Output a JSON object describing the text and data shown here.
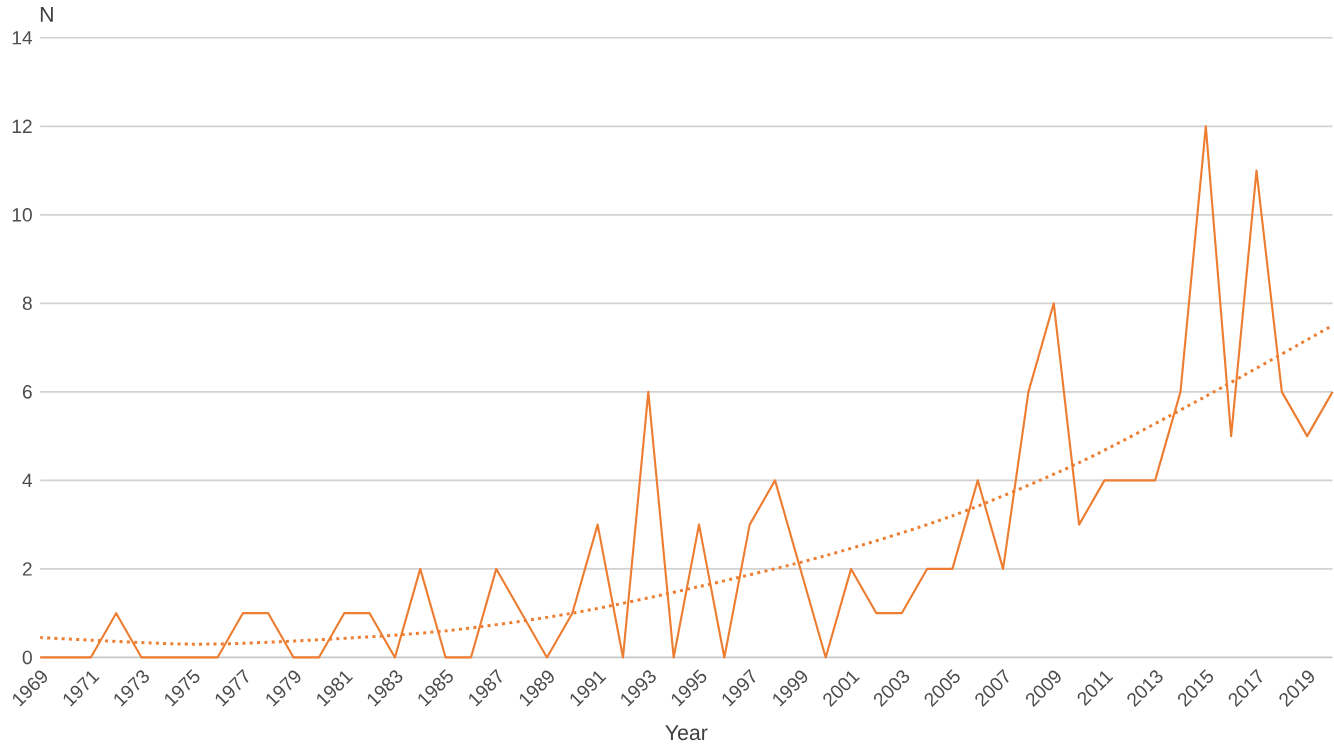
{
  "chart_data": {
    "type": "line",
    "xlabel": "Year",
    "ylabel": "N",
    "x": [
      1969,
      1970,
      1971,
      1972,
      1973,
      1974,
      1975,
      1976,
      1977,
      1978,
      1979,
      1980,
      1981,
      1982,
      1983,
      1984,
      1985,
      1986,
      1987,
      1988,
      1989,
      1990,
      1991,
      1992,
      1993,
      1994,
      1995,
      1996,
      1997,
      1998,
      1999,
      2000,
      2001,
      2002,
      2003,
      2004,
      2005,
      2006,
      2007,
      2008,
      2009,
      2010,
      2011,
      2012,
      2013,
      2014,
      2015,
      2016,
      2017,
      2018,
      2019,
      2020
    ],
    "series": [
      {
        "color": "#ed7d31",
        "line_style": "solid",
        "values": [
          0,
          0,
          0,
          1,
          0,
          0,
          0,
          0,
          1,
          1,
          0,
          0,
          1,
          1,
          0,
          2,
          0,
          0,
          2,
          1,
          0,
          1,
          3,
          0,
          6,
          0,
          3,
          0,
          3,
          4,
          2,
          0,
          2,
          1,
          1,
          2,
          2,
          4,
          2,
          6,
          8,
          3,
          4,
          4,
          4,
          6,
          12,
          5,
          11,
          6,
          5,
          6
        ]
      },
      {
        "color": "#ed7d31",
        "line_style": "dotted",
        "x": [
          1969,
          1975,
          1980,
          1985,
          1990,
          1995,
          2000,
          2005,
          2010,
          2015,
          2020
        ],
        "values": [
          0.45,
          0.3,
          0.4,
          0.6,
          1.0,
          1.6,
          2.3,
          3.2,
          4.4,
          5.9,
          7.5
        ]
      }
    ],
    "xlim": [
      1969,
      2020
    ],
    "xticks": [
      1969,
      1971,
      1973,
      1975,
      1977,
      1979,
      1981,
      1983,
      1985,
      1987,
      1989,
      1991,
      1993,
      1995,
      1997,
      1999,
      2001,
      2003,
      2005,
      2007,
      2009,
      2011,
      2013,
      2015,
      2017,
      2019
    ],
    "ylim": [
      0,
      14
    ],
    "yticks": [
      0,
      2,
      4,
      6,
      8,
      10,
      12,
      14
    ],
    "grid": "y",
    "marker": "none"
  }
}
